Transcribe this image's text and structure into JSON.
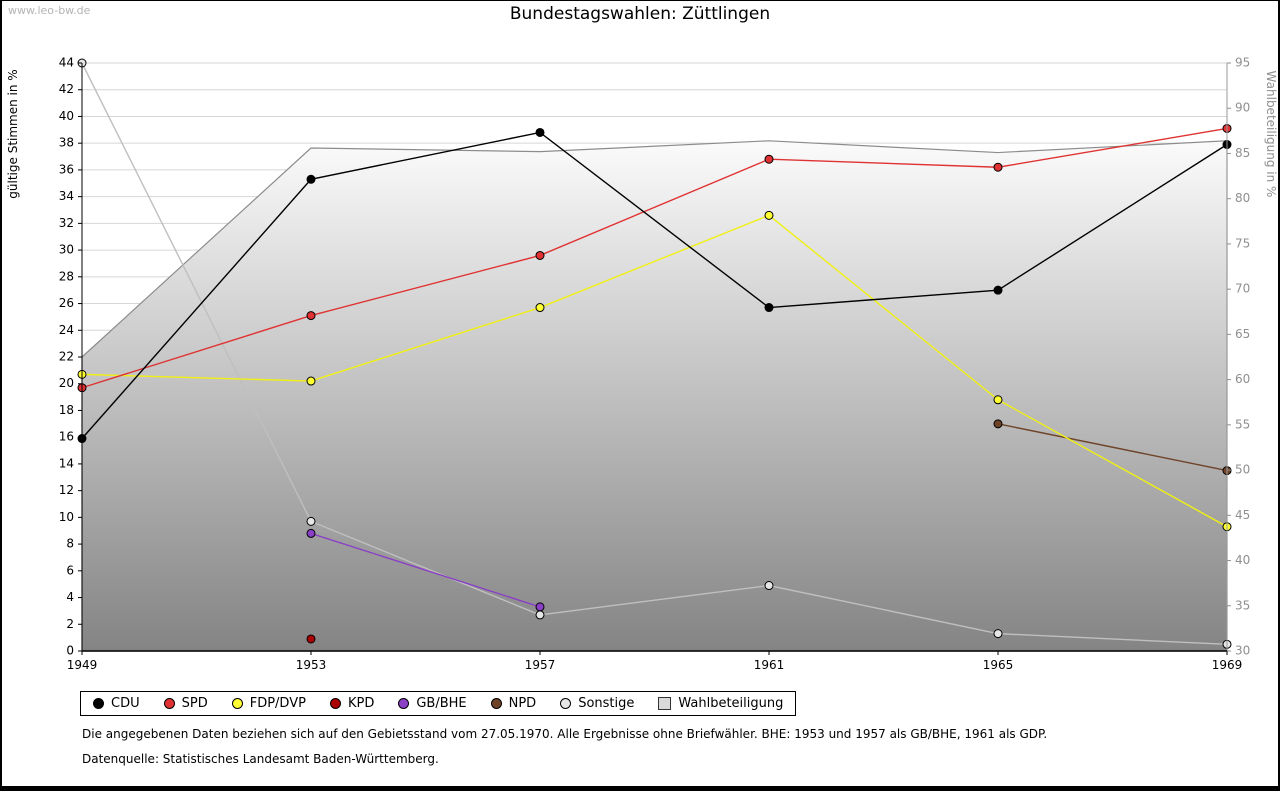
{
  "page": {
    "watermark": "www.leo-bw.de",
    "title": "Bundestagswahlen: Züttlingen"
  },
  "chart_data": {
    "type": "line",
    "title": "Bundestagswahlen: Züttlingen",
    "x_categories": [
      "1949",
      "1953",
      "1957",
      "1961",
      "1965",
      "1969"
    ],
    "left_axis": {
      "label": "gültige Stimmen in %",
      "min": 0,
      "max": 44,
      "step": 2
    },
    "right_axis": {
      "label": "Wahlbeteiligung in %",
      "min": 30,
      "max": 95,
      "step": 5
    },
    "grid": true,
    "legend_position": "bottom",
    "series": [
      {
        "name": "CDU",
        "color": "#000000",
        "marker_fill": "#000000",
        "axis": "left",
        "values": [
          15.9,
          35.3,
          38.8,
          25.7,
          27.0,
          37.9
        ]
      },
      {
        "name": "SPD",
        "color": "#e03232",
        "marker_fill": "#e03232",
        "axis": "left",
        "values": [
          19.7,
          25.1,
          29.6,
          36.8,
          36.2,
          39.1
        ]
      },
      {
        "name": "FDP/DVP",
        "color": "#f0f014",
        "marker_fill": "#ffff33",
        "axis": "left",
        "values": [
          20.7,
          20.2,
          25.7,
          32.6,
          18.8,
          9.3
        ]
      },
      {
        "name": "KPD",
        "color": "#aa0000",
        "marker_fill": "#aa0000",
        "axis": "left",
        "values": [
          null,
          0.9,
          null,
          null,
          null,
          null
        ]
      },
      {
        "name": "GB/BHE",
        "color": "#8a3fc6",
        "marker_fill": "#8a3fc6",
        "axis": "left",
        "values": [
          null,
          8.8,
          3.3,
          null,
          null,
          null
        ]
      },
      {
        "name": "NPD",
        "color": "#6e4328",
        "marker_fill": "#6e4328",
        "axis": "left",
        "values": [
          null,
          null,
          null,
          null,
          17.0,
          13.5
        ]
      },
      {
        "name": "Sonstige",
        "color": "#bfbfbf",
        "marker_fill": "#e6e6e6",
        "axis": "left",
        "values": [
          44.0,
          9.7,
          2.7,
          4.9,
          1.3,
          0.5
        ]
      }
    ],
    "area_series": {
      "name": "Wahlbeteiligung",
      "axis": "right",
      "line_color": "#8c8c8c",
      "fill_top": "#fbfbfb",
      "fill_bottom": "#848484",
      "legend_fill": "#d9d9d9",
      "values": [
        62.5,
        85.6,
        85.2,
        86.4,
        85.1,
        86.4
      ]
    },
    "legend": {
      "items": [
        "CDU",
        "SPD",
        "FDP/DVP",
        "KPD",
        "GB/BHE",
        "NPD",
        "Sonstige",
        "Wahlbeteiligung"
      ]
    }
  },
  "footnotes": {
    "line1": "Die angegebenen Daten beziehen sich auf den Gebietsstand vom 27.05.1970. Alle Ergebnisse ohne Briefwähler. BHE: 1953 und 1957 als GB/BHE, 1961 als GDP.",
    "line2": "Datenquelle: Statistisches Landesamt Baden-Württemberg."
  }
}
